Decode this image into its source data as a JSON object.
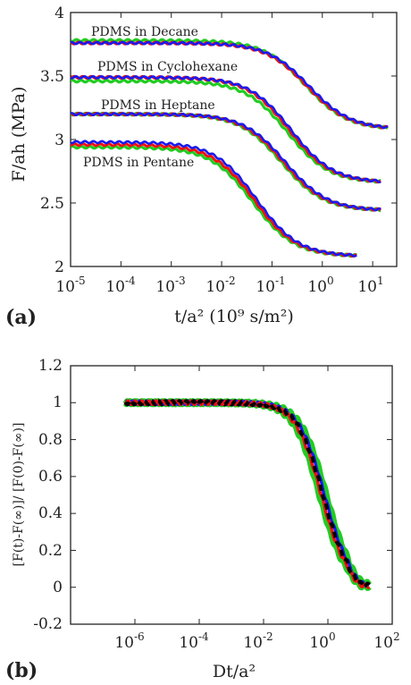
{
  "colors": {
    "green": "#22cc22",
    "red": "#ee1111",
    "blue": "#1a1aee",
    "black": "#000000"
  },
  "chart_data": [
    {
      "type": "line",
      "panel_label": "(a)",
      "xlabel": "t/a² (10⁹ s/m²)",
      "ylabel": "F/ah (MPa)",
      "x_scale": "log",
      "xlim": [
        1e-05,
        30
      ],
      "ylim": [
        2,
        4
      ],
      "x_tick_labels": [
        {
          "base": "10",
          "exp": "-5"
        },
        {
          "base": "10",
          "exp": "-4"
        },
        {
          "base": "10",
          "exp": "-3"
        },
        {
          "base": "10",
          "exp": "-2"
        },
        {
          "base": "10",
          "exp": "-1"
        },
        {
          "base": "10",
          "exp": "0"
        },
        {
          "base": "10",
          "exp": "1"
        }
      ],
      "y_tick_labels": [
        "2",
        "2.5",
        "3",
        "3.5",
        "4"
      ],
      "series": [
        {
          "name": "PDMS in Decane",
          "plateau": 3.76,
          "final": 3.08,
          "t_mid": 0.5,
          "t_end": 20,
          "offsets": {
            "green": 0.02,
            "red": 0.0,
            "blue": 0.0
          }
        },
        {
          "name": "PDMS in Cyclohexane",
          "plateau": 3.49,
          "final": 2.66,
          "t_mid": 0.22,
          "t_end": 15,
          "offsets": {
            "green": -0.03,
            "red": 0.0,
            "blue": 0.0
          }
        },
        {
          "name": "PDMS in Heptane",
          "plateau": 3.2,
          "final": 2.44,
          "t_mid": 0.17,
          "t_end": 15,
          "offsets": {
            "green": 0.0,
            "red": 0.0,
            "blue": 0.0
          }
        },
        {
          "name": "PDMS in Pentane",
          "plateau": 2.96,
          "final": 2.08,
          "t_mid": 0.045,
          "t_end": 5,
          "offsets": {
            "green": -0.02,
            "red": 0.0,
            "blue": 0.02
          }
        }
      ]
    },
    {
      "type": "line",
      "panel_label": "(b)",
      "xlabel": "Dt/a²",
      "ylabel": "[F(t)-F(∞)]/ [F(0)-F(∞)]",
      "x_scale": "log",
      "xlim": [
        1e-08,
        100
      ],
      "ylim": [
        -0.2,
        1.2
      ],
      "x_tick_labels": [
        {
          "base": "10",
          "exp": "-6"
        },
        {
          "base": "10",
          "exp": "-4"
        },
        {
          "base": "10",
          "exp": "-2"
        },
        {
          "base": "10",
          "exp": "0"
        },
        {
          "base": "10",
          "exp": "2"
        }
      ],
      "y_tick_labels": [
        "-0.2",
        "0",
        "0.2",
        "0.4",
        "0.6",
        "0.8",
        "1",
        "1.2"
      ],
      "master_curve": {
        "x_start": 5e-07,
        "x_end": 20,
        "x_mid": 0.7,
        "final": 0.0
      }
    }
  ]
}
